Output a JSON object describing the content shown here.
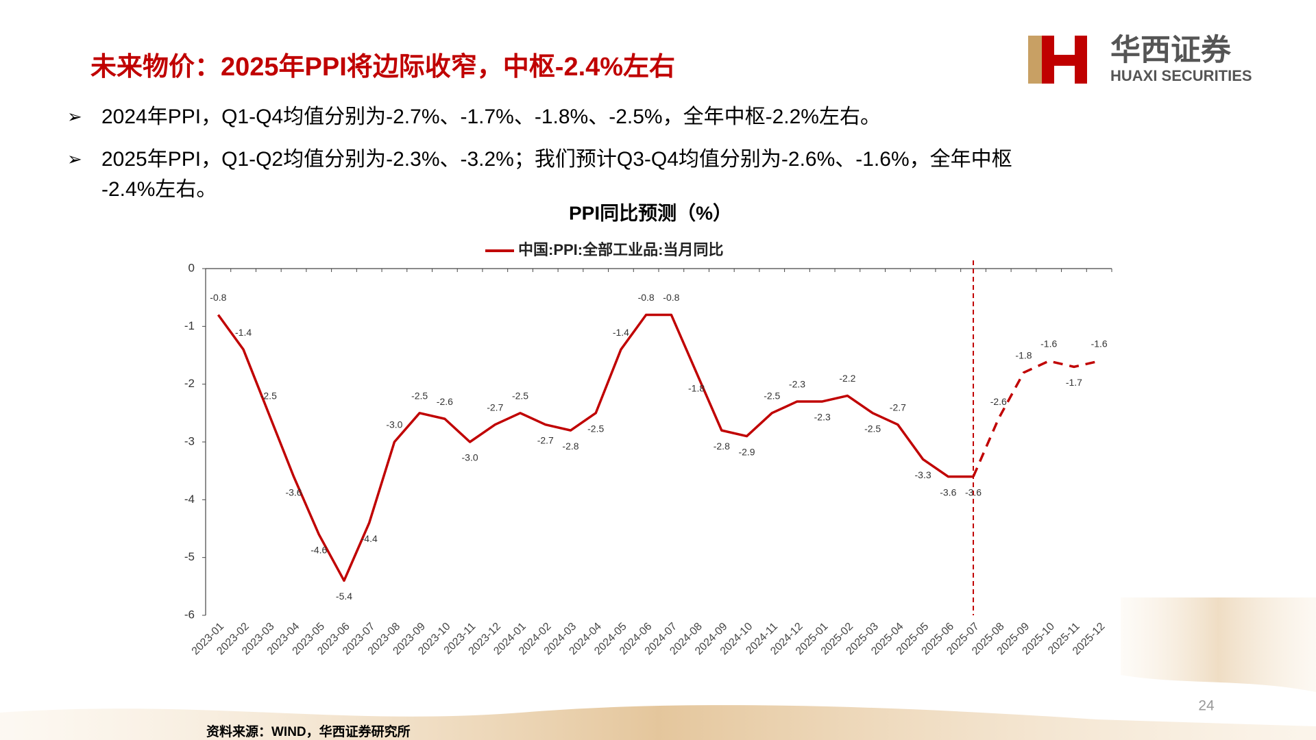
{
  "header": {
    "title": "未来物价：2025年PPI将边际收窄，中枢-2.4%左右",
    "logo_cn": "华西证券",
    "logo_en": "HUAXI SECURITIES"
  },
  "bullets": [
    "2024年PPI，Q1-Q4均值分别为-2.7%、-1.7%、-1.8%、-2.5%，全年中枢-2.2%左右。",
    "2025年PPI，Q1-Q2均值分别为-2.3%、-3.2%；我们预计Q3-Q4均值分别为-2.6%、-1.6%，全年中枢",
    "-2.4%左右。"
  ],
  "chart_data": {
    "type": "line",
    "title": "PPI同比预测（%）",
    "categories": [
      "2023-01",
      "2023-02",
      "2023-03",
      "2023-04",
      "2023-05",
      "2023-06",
      "2023-07",
      "2023-08",
      "2023-09",
      "2023-10",
      "2023-11",
      "2023-12",
      "2024-01",
      "2024-02",
      "2024-03",
      "2024-04",
      "2024-05",
      "2024-06",
      "2024-07",
      "2024-08",
      "2024-09",
      "2024-10",
      "2024-11",
      "2024-12",
      "2025-01",
      "2025-02",
      "2025-03",
      "2025-04",
      "2025-05",
      "2025-06",
      "2025-07",
      "2025-08",
      "2025-09",
      "2025-10",
      "2025-11",
      "2025-12"
    ],
    "series": [
      {
        "name": "中国:PPI:全部工业品:当月同比",
        "color": "#c00000",
        "values": [
          -0.8,
          -1.4,
          -2.5,
          -3.6,
          -4.6,
          -5.4,
          -4.4,
          -3.0,
          -2.5,
          -2.6,
          -3.0,
          -2.7,
          -2.5,
          -2.7,
          -2.8,
          -2.5,
          -1.4,
          -0.8,
          -0.8,
          -1.8,
          -2.8,
          -2.9,
          -2.5,
          -2.3,
          -2.3,
          -2.2,
          -2.5,
          -2.7,
          -3.3,
          -3.6,
          -3.6,
          -2.6,
          -1.8,
          -1.6,
          -1.7,
          -1.6
        ],
        "value_labels": [
          "-0.8",
          "-1.4",
          "-2.5",
          "-3.6",
          "-4.6",
          "-5.4",
          "-4.4",
          "-3.0",
          "-2.5",
          "-2.6",
          "-3.0",
          "-2.7",
          "-2.5",
          "-2.7",
          "-2.8",
          "-2.5",
          "-1.4",
          "-0.8",
          "-0.8",
          "-1.8",
          "-2.8",
          "-2.9",
          "-2.5",
          "-2.3",
          "-2.3",
          "-2.2",
          "-2.5",
          "-2.7",
          "-3.3",
          "-3.6",
          "-3.6",
          "-2.6",
          "-1.8",
          "-1.6",
          "-1.7",
          "-1.6"
        ]
      }
    ],
    "forecast_from": "2025-07",
    "ylim": [
      -6,
      0
    ],
    "yticks": [
      0,
      -1,
      -2,
      -3,
      -4,
      -5,
      -6
    ],
    "legend": "top"
  },
  "footer": {
    "source": "资料来源：WIND，华西证券研究所",
    "page": "24"
  }
}
